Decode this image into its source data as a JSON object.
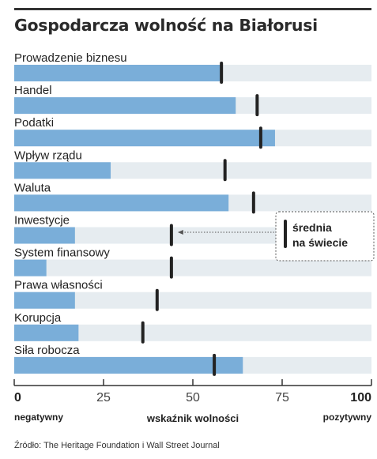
{
  "title": "Gospodarcza wolność na Białorusi",
  "source": "Źródło: The Heritage Foundation i Wall Street Journal",
  "chart_data": {
    "type": "bar",
    "orientation": "horizontal",
    "categories": [
      "Prowadzenie biznesu",
      "Handel",
      "Podatki",
      "Wpływ rządu",
      "Waluta",
      "Inwestycje",
      "System finansowy",
      "Prawa własności",
      "Korupcja",
      "Siła robocza"
    ],
    "series": [
      {
        "values": [
          58,
          62,
          73,
          27,
          60,
          17,
          9,
          17,
          18,
          64
        ]
      },
      {
        "name": "średnia na świecie",
        "values": [
          58,
          68,
          69,
          59,
          67,
          44,
          44,
          40,
          36,
          56
        ]
      }
    ],
    "xlabel": "wskaźnik wolności",
    "xlim": [
      0,
      100
    ],
    "xticks": [
      "0",
      "25",
      "50",
      "75",
      "100"
    ],
    "x_end_labels": {
      "min": "negatywny",
      "max": "pozytywny"
    },
    "legend": {
      "label_line1": "średnia",
      "label_line2": "na świecie",
      "placement": "right"
    },
    "colors": {
      "bar": "#7aaed9",
      "track": "#e6ecf0",
      "marker": "#222222",
      "text": "#222222"
    }
  }
}
